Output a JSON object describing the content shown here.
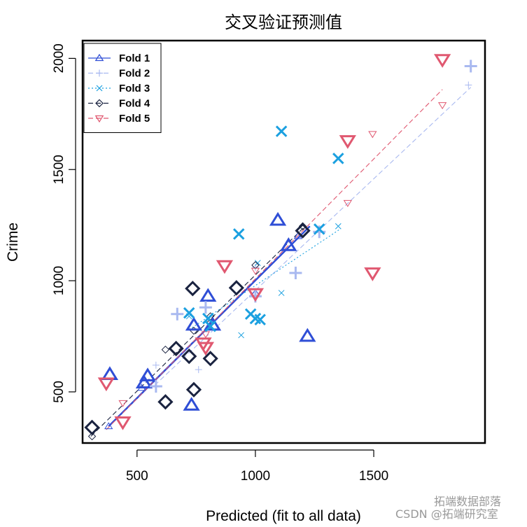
{
  "chart_data": {
    "type": "scatter",
    "title": "交叉验证预测值",
    "xlabel": "Predicted (fit to all data)",
    "ylabel": "Crime",
    "xlim": [
      270,
      1970
    ],
    "ylim": [
      270,
      2080
    ],
    "xticks": [
      500,
      1000,
      1500
    ],
    "yticks": [
      500,
      1000,
      1500,
      2000
    ],
    "legend_position": "top-left",
    "series": [
      {
        "name": "Fold 1",
        "color": "#2f4ed6",
        "marker": "triangle-up",
        "line_style": "solid",
        "points": [
          [
            385,
            578
          ],
          [
            530,
            540
          ],
          [
            545,
            572
          ],
          [
            730,
            440
          ],
          [
            800,
            930
          ],
          [
            1095,
            1272
          ],
          [
            1140,
            1158
          ],
          [
            1220,
            750
          ],
          [
            740,
            800
          ],
          [
            820,
            800
          ]
        ],
        "cv_points": [
          [
            380,
            345
          ],
          [
            520,
            518
          ],
          [
            800,
            790
          ],
          [
            1000,
            945
          ],
          [
            1180,
            1200
          ]
        ],
        "fit_line": [
          [
            380,
            345
          ],
          [
            1230,
            1245
          ]
        ]
      },
      {
        "name": "Fold 2",
        "color": "#a9b9f0",
        "marker": "plus",
        "line_style": "dashed",
        "points": [
          [
            580,
            525
          ],
          [
            670,
            850
          ],
          [
            790,
            880
          ],
          [
            1000,
            930
          ],
          [
            1170,
            1035
          ],
          [
            1270,
            1220
          ],
          [
            1910,
            1965
          ]
        ],
        "cv_points": [
          [
            580,
            620
          ],
          [
            760,
            600
          ],
          [
            1000,
            1060
          ],
          [
            1900,
            1880
          ]
        ],
        "fit_line": [
          [
            575,
            530
          ],
          [
            1910,
            1870
          ]
        ]
      },
      {
        "name": "Fold 3",
        "color": "#1ba0e0",
        "marker": "cross",
        "line_style": "dotted",
        "points": [
          [
            720,
            855
          ],
          [
            800,
            830
          ],
          [
            810,
            795
          ],
          [
            930,
            1210
          ],
          [
            980,
            850
          ],
          [
            1000,
            830
          ],
          [
            1020,
            825
          ],
          [
            1110,
            1672
          ],
          [
            1270,
            1232
          ],
          [
            1350,
            1550
          ]
        ],
        "cv_points": [
          [
            720,
            840
          ],
          [
            940,
            755
          ],
          [
            1010,
            1080
          ],
          [
            1110,
            945
          ],
          [
            1350,
            1245
          ]
        ],
        "fit_line": [
          [
            720,
            780
          ],
          [
            1355,
            1230
          ]
        ]
      },
      {
        "name": "Fold 4",
        "color": "#1a2340",
        "marker": "diamond",
        "line_style": "dashed",
        "points": [
          [
            310,
            340
          ],
          [
            620,
            455
          ],
          [
            665,
            695
          ],
          [
            720,
            660
          ],
          [
            735,
            965
          ],
          [
            740,
            510
          ],
          [
            810,
            650
          ],
          [
            920,
            968
          ],
          [
            1200,
            1225
          ]
        ],
        "cv_points": [
          [
            310,
            300
          ],
          [
            620,
            690
          ],
          [
            740,
            775
          ],
          [
            810,
            840
          ],
          [
            1000,
            1070
          ],
          [
            1200,
            1245
          ]
        ],
        "fit_line": [
          [
            305,
            300
          ],
          [
            1210,
            1245
          ]
        ]
      },
      {
        "name": "Fold 5",
        "color": "#e05870",
        "marker": "triangle-down",
        "line_style": "dashed",
        "points": [
          [
            370,
            540
          ],
          [
            440,
            365
          ],
          [
            780,
            720
          ],
          [
            790,
            700
          ],
          [
            870,
            1068
          ],
          [
            1000,
            942
          ],
          [
            1390,
            1630
          ],
          [
            1495,
            1035
          ],
          [
            1790,
            1995
          ]
        ],
        "cv_points": [
          [
            440,
            450
          ],
          [
            790,
            760
          ],
          [
            1000,
            1045
          ],
          [
            1390,
            1350
          ],
          [
            1495,
            1660
          ],
          [
            1790,
            1790
          ]
        ],
        "fit_line": [
          [
            370,
            330
          ],
          [
            1790,
            1860
          ]
        ]
      }
    ]
  },
  "watermark": {
    "line1": "拓端数据部落",
    "line2": "CSDN @拓端研究室"
  }
}
